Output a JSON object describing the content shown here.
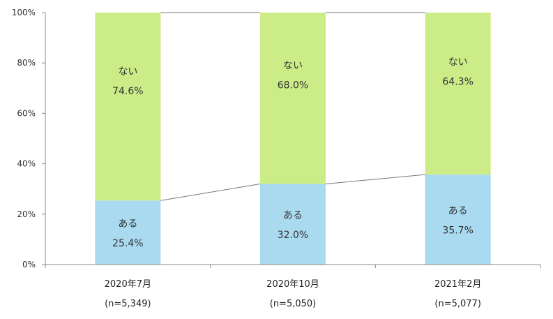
{
  "chart_data": {
    "type": "bar",
    "stacked": true,
    "percent_stacked": true,
    "categories": [
      "2020年7月",
      "2020年10月",
      "2021年2月"
    ],
    "category_sublabels": [
      "(n=5,349)",
      "(n=5,050)",
      "(n=5,077)"
    ],
    "series": [
      {
        "name": "ある",
        "values": [
          25.4,
          32.0,
          35.7
        ],
        "value_labels": [
          "25.4%",
          "32.0%",
          "35.7%"
        ],
        "color": "#a9daf0"
      },
      {
        "name": "ない",
        "values": [
          74.6,
          68.0,
          64.3
        ],
        "value_labels": [
          "74.6%",
          "68.0%",
          "64.3%"
        ],
        "color": "#ccec88"
      }
    ],
    "series_connector_lines": true,
    "ylim": [
      0,
      100
    ],
    "yticks": [
      0,
      20,
      40,
      60,
      80,
      100
    ],
    "ytick_labels": [
      "0%",
      "20%",
      "40%",
      "60%",
      "80%",
      "100%"
    ],
    "grid": false,
    "legend": "none"
  }
}
